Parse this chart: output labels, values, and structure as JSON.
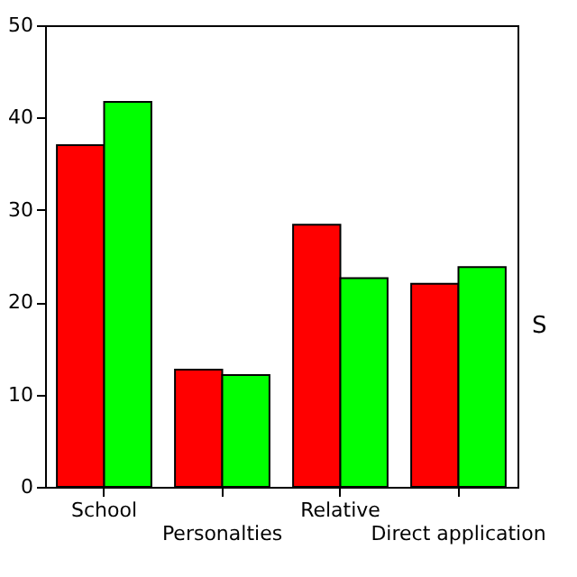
{
  "chart_data": {
    "type": "bar",
    "categories": [
      "School",
      "Personalties",
      "Relative",
      "Direct application"
    ],
    "series": [
      {
        "color": "#ff0000",
        "values": [
          37,
          12.7,
          28.4,
          22
        ]
      },
      {
        "color": "#00ff00",
        "values": [
          41.7,
          12.1,
          22.6,
          23.8
        ]
      }
    ],
    "ylim": [
      0,
      50
    ],
    "yticks": [
      0,
      10,
      20,
      30,
      40,
      50
    ],
    "grid": false,
    "annotations": [
      "S"
    ]
  }
}
